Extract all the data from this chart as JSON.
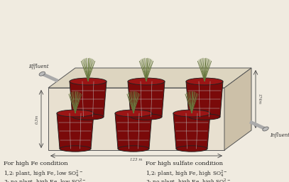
{
  "bg_color": "#f0ebe0",
  "face_color": "#e8e0d0",
  "top_color": "#ddd5c0",
  "right_color": "#ccc0a8",
  "dark_red": "#7a0a0a",
  "bucket_top_color": "#9b1515",
  "plant_color1": "#6a7a45",
  "plant_color2": "#8a9a55",
  "text_color": "#222222",
  "dim_color": "#444444",
  "edge_color": "#555555",
  "pipe_color": "#999999",
  "mesh_color": "#cccccc",
  "left_col_title": "For high Fe condition",
  "right_col_title": "For high sulfate condition",
  "effluent_label": "Effluent",
  "influent_label": "Influent",
  "dim_horiz": "123 m",
  "dim_vert": "174m",
  "dim_left": "0.3m"
}
